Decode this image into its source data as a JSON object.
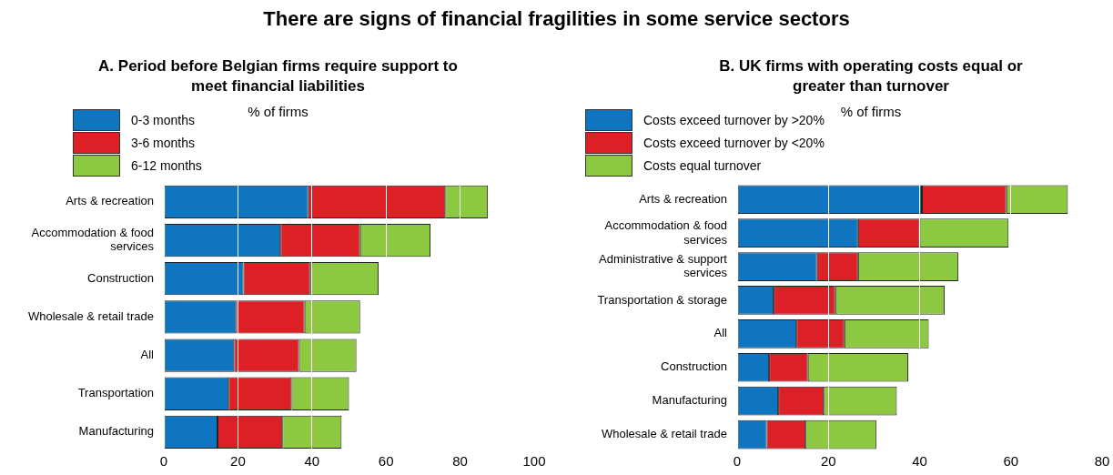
{
  "chart_data": [
    {
      "type": "bar",
      "orientation": "horizontal",
      "stacked": true,
      "title": "A. Period before Belgian firms require support to meet financial liabilities",
      "subtitle": "% of firms",
      "annotations": [
        "There are signs of financial fragilities in some service sectors"
      ],
      "categories": [
        "Arts & recreation",
        "Accommodation & food services",
        "Construction",
        "Wholesale & retail trade",
        "All",
        "Transportation",
        "Manufacturing"
      ],
      "series": [
        {
          "name": "0-3 months",
          "color": "#0f75c0",
          "values": [
            39,
            31.5,
            21.5,
            19.5,
            19,
            17.5,
            14.5
          ]
        },
        {
          "name": "3-6 months",
          "color": "#dd1f26",
          "values": [
            37,
            21.5,
            18,
            18.5,
            17.5,
            17,
            17.5
          ]
        },
        {
          "name": "6-12 months",
          "color": "#8cc840",
          "values": [
            11.5,
            19,
            18.5,
            15,
            15.5,
            15.5,
            16
          ]
        }
      ],
      "xlim": [
        0,
        100
      ],
      "xticks": [
        0,
        20,
        40,
        60,
        80,
        100
      ],
      "grid": "x",
      "legend": "top left"
    },
    {
      "type": "bar",
      "orientation": "horizontal",
      "stacked": true,
      "title": "B. UK firms with operating costs equal or greater than turnover",
      "subtitle": "% of firms",
      "categories": [
        "Arts & recreation",
        "Accommodation & food services",
        "Administrative & support services",
        "Transportation & storage",
        "All",
        "Construction",
        "Manufacturing",
        "Wholesale & retail trade"
      ],
      "series": [
        {
          "name": "Costs exceed turnover by >20%",
          "color": "#0f75c0",
          "values": [
            40.5,
            26.5,
            17.5,
            8,
            13,
            7,
            9,
            6.5
          ]
        },
        {
          "name": "Costs exceed turnover by <20%",
          "color": "#dd1f26",
          "values": [
            18.5,
            13.5,
            9,
            13.5,
            10.5,
            8.5,
            10,
            8.5
          ]
        },
        {
          "name": "Costs equal turnover",
          "color": "#8cc840",
          "values": [
            13.5,
            19.5,
            22,
            24,
            18.5,
            22,
            16,
            15.5
          ]
        }
      ],
      "xlim": [
        0,
        80
      ],
      "xticks": [
        0,
        20,
        40,
        60,
        80
      ],
      "grid": "x",
      "legend": "top left"
    }
  ]
}
